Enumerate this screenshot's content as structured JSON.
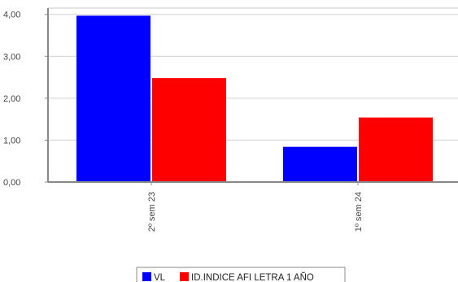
{
  "chart_data": {
    "type": "bar",
    "categories": [
      "2º sem  23",
      "1º sem  24"
    ],
    "series": [
      {
        "name": "VL",
        "values": [
          3.97,
          0.84
        ],
        "color": "#0000ff"
      },
      {
        "name": "ID.INDICE AFI LETRA 1 AÑO",
        "values": [
          2.48,
          1.54
        ],
        "color": "#ff0000"
      }
    ],
    "y_ticks": [
      "0,00",
      "1,00",
      "2,00",
      "3,00",
      "4,00"
    ],
    "ylim": [
      0,
      4.15
    ],
    "grid": true,
    "legend": "bottom-center",
    "title": "",
    "xlabel": "",
    "ylabel": ""
  }
}
